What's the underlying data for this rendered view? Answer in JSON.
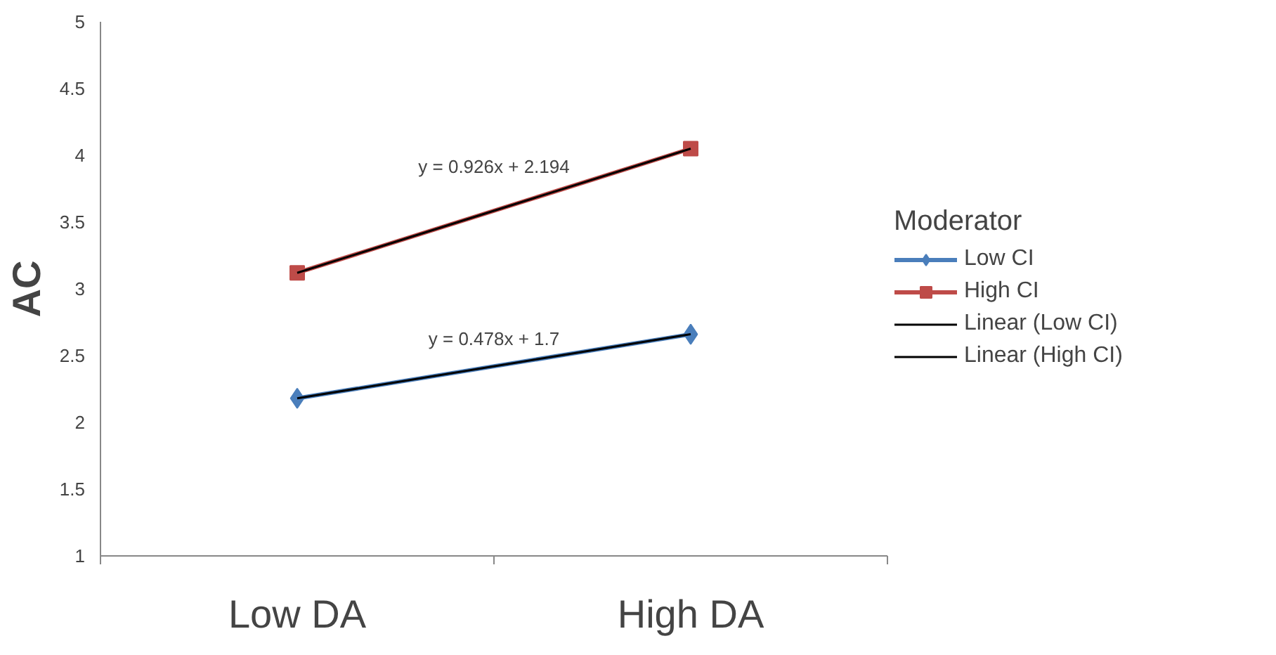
{
  "chart_data": {
    "type": "line",
    "ylabel": "AC",
    "categories": [
      "Low DA",
      "High DA"
    ],
    "series": [
      {
        "name": "Low CI",
        "color": "#4a7ebb",
        "values": [
          2.18,
          2.66
        ],
        "marker": "diamond"
      },
      {
        "name": "High CI",
        "color": "#be4b48",
        "values": [
          3.12,
          4.05
        ],
        "marker": "square"
      },
      {
        "name": "Linear (Low CI)",
        "color": "#000000",
        "values": [
          2.18,
          2.66
        ],
        "marker": "none"
      },
      {
        "name": "Linear (High CI)",
        "color": "#000000",
        "values": [
          3.12,
          4.05
        ],
        "marker": "none"
      }
    ],
    "ylim": [
      1,
      5
    ],
    "yticks": [
      1,
      1.5,
      2,
      2.5,
      3,
      3.5,
      4,
      4.5,
      5
    ],
    "legend_title": "Moderator",
    "legend": "right",
    "grid": false,
    "annotations": [
      "y = 0.478x + 1.7",
      "y = 0.926x + 2.194"
    ]
  }
}
